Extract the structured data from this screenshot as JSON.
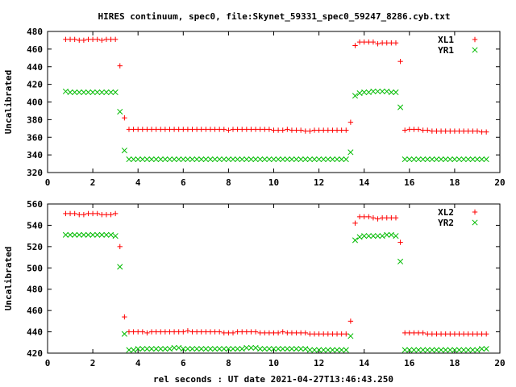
{
  "title": "HIRES continuum, spec0, file:Skynet_59331_spec0_59247_8286.cyb.txt",
  "xlabel": "rel seconds : UT date 2021-04-27T13:46:43.250",
  "colors": {
    "red": "#ff0000",
    "green": "#00bb00",
    "axis": "#000000"
  },
  "chart_data": [
    {
      "type": "scatter",
      "ylabel": "Uncalibrated",
      "xlim": [
        0,
        20
      ],
      "ylim": [
        320,
        480
      ],
      "xticks": [
        0,
        2,
        4,
        6,
        8,
        10,
        12,
        14,
        16,
        18,
        20
      ],
      "yticks": [
        320,
        340,
        360,
        380,
        400,
        420,
        440,
        460,
        480
      ],
      "legend_position": "top-right",
      "series": [
        {
          "name": "XL1",
          "marker": "plus",
          "color": "#ff0000",
          "x": [
            0.8,
            1.0,
            1.2,
            1.4,
            1.6,
            1.8,
            2.0,
            2.2,
            2.4,
            2.6,
            2.8,
            3.0,
            3.2,
            3.4,
            3.6,
            3.8,
            4.0,
            4.2,
            4.4,
            4.6,
            4.8,
            5.0,
            5.2,
            5.4,
            5.6,
            5.8,
            6.0,
            6.2,
            6.4,
            6.6,
            6.8,
            7.0,
            7.2,
            7.4,
            7.6,
            7.8,
            8.0,
            8.2,
            8.4,
            8.6,
            8.8,
            9.0,
            9.2,
            9.4,
            9.6,
            9.8,
            10.0,
            10.2,
            10.4,
            10.6,
            10.8,
            11.0,
            11.2,
            11.4,
            11.6,
            11.8,
            12.0,
            12.2,
            12.4,
            12.6,
            12.8,
            13.0,
            13.2,
            13.4,
            13.6,
            13.8,
            14.0,
            14.2,
            14.4,
            14.6,
            14.8,
            15.0,
            15.2,
            15.4,
            15.6,
            15.8,
            16.0,
            16.2,
            16.4,
            16.6,
            16.8,
            17.0,
            17.2,
            17.4,
            17.6,
            17.8,
            18.0,
            18.2,
            18.4,
            18.6,
            18.8,
            19.0,
            19.2,
            19.4
          ],
          "y": [
            471,
            471,
            471,
            470,
            470,
            471,
            471,
            471,
            470,
            471,
            471,
            471,
            441,
            382,
            369,
            369,
            369,
            369,
            369,
            369,
            369,
            369,
            369,
            369,
            369,
            369,
            369,
            369,
            369,
            369,
            369,
            369,
            369,
            369,
            369,
            369,
            368,
            369,
            369,
            369,
            369,
            369,
            369,
            369,
            369,
            369,
            368,
            368,
            368,
            369,
            368,
            368,
            368,
            367,
            367,
            368,
            368,
            368,
            368,
            368,
            368,
            368,
            368,
            377,
            464,
            468,
            468,
            468,
            468,
            466,
            467,
            467,
            467,
            467,
            446,
            368,
            369,
            369,
            369,
            368,
            368,
            367,
            367,
            367,
            367,
            367,
            367,
            367,
            367,
            367,
            367,
            367,
            366,
            366
          ],
          "x_mask_note": ""
        },
        {
          "name": "YR1",
          "marker": "cross",
          "color": "#00bb00",
          "x": [
            0.8,
            1.0,
            1.2,
            1.4,
            1.6,
            1.8,
            2.0,
            2.2,
            2.4,
            2.6,
            2.8,
            3.0,
            3.2,
            3.4,
            3.6,
            3.8,
            4.0,
            4.2,
            4.4,
            4.6,
            4.8,
            5.0,
            5.2,
            5.4,
            5.6,
            5.8,
            6.0,
            6.2,
            6.4,
            6.6,
            6.8,
            7.0,
            7.2,
            7.4,
            7.6,
            7.8,
            8.0,
            8.2,
            8.4,
            8.6,
            8.8,
            9.0,
            9.2,
            9.4,
            9.6,
            9.8,
            10.0,
            10.2,
            10.4,
            10.6,
            10.8,
            11.0,
            11.2,
            11.4,
            11.6,
            11.8,
            12.0,
            12.2,
            12.4,
            12.6,
            12.8,
            13.0,
            13.2,
            13.4,
            13.6,
            13.8,
            14.0,
            14.2,
            14.4,
            14.6,
            14.8,
            15.0,
            15.2,
            15.4,
            15.6,
            15.8,
            16.0,
            16.2,
            16.4,
            16.6,
            16.8,
            17.0,
            17.2,
            17.4,
            17.6,
            17.8,
            18.0,
            18.2,
            18.4,
            18.6,
            18.8,
            19.0,
            19.2,
            19.4
          ],
          "y": [
            412,
            411,
            411,
            411,
            411,
            411,
            411,
            411,
            411,
            411,
            411,
            411,
            389,
            345,
            335,
            335,
            335,
            335,
            335,
            335,
            335,
            335,
            335,
            335,
            335,
            335,
            335,
            335,
            335,
            335,
            335,
            335,
            335,
            335,
            335,
            335,
            335,
            335,
            335,
            335,
            335,
            335,
            335,
            335,
            335,
            335,
            335,
            335,
            335,
            335,
            335,
            335,
            335,
            335,
            335,
            335,
            335,
            335,
            335,
            335,
            335,
            335,
            335,
            343,
            407,
            410,
            411,
            411,
            412,
            412,
            412,
            412,
            411,
            411,
            394,
            335,
            335,
            335,
            335,
            335,
            335,
            335,
            335,
            335,
            335,
            335,
            335,
            335,
            335,
            335,
            335,
            335,
            335,
            335
          ]
        }
      ]
    },
    {
      "type": "scatter",
      "ylabel": "Uncalibrated",
      "xlim": [
        0,
        20
      ],
      "ylim": [
        420,
        560
      ],
      "xticks": [
        0,
        2,
        4,
        6,
        8,
        10,
        12,
        14,
        16,
        18,
        20
      ],
      "yticks": [
        420,
        440,
        460,
        480,
        500,
        520,
        540,
        560
      ],
      "legend_position": "top-right",
      "series": [
        {
          "name": "XL2",
          "marker": "plus",
          "color": "#ff0000",
          "x": [
            0.8,
            1.0,
            1.2,
            1.4,
            1.6,
            1.8,
            2.0,
            2.2,
            2.4,
            2.6,
            2.8,
            3.0,
            3.2,
            3.4,
            3.6,
            3.8,
            4.0,
            4.2,
            4.4,
            4.6,
            4.8,
            5.0,
            5.2,
            5.4,
            5.6,
            5.8,
            6.0,
            6.2,
            6.4,
            6.6,
            6.8,
            7.0,
            7.2,
            7.4,
            7.6,
            7.8,
            8.0,
            8.2,
            8.4,
            8.6,
            8.8,
            9.0,
            9.2,
            9.4,
            9.6,
            9.8,
            10.0,
            10.2,
            10.4,
            10.6,
            10.8,
            11.0,
            11.2,
            11.4,
            11.6,
            11.8,
            12.0,
            12.2,
            12.4,
            12.6,
            12.8,
            13.0,
            13.2,
            13.4,
            13.6,
            13.8,
            14.0,
            14.2,
            14.4,
            14.6,
            14.8,
            15.0,
            15.2,
            15.4,
            15.6,
            15.8,
            16.0,
            16.2,
            16.4,
            16.6,
            16.8,
            17.0,
            17.2,
            17.4,
            17.6,
            17.8,
            18.0,
            18.2,
            18.4,
            18.6,
            18.8,
            19.0,
            19.2,
            19.4
          ],
          "y": [
            551,
            551,
            551,
            550,
            550,
            551,
            551,
            551,
            550,
            550,
            550,
            551,
            520,
            454,
            440,
            440,
            440,
            440,
            439,
            440,
            440,
            440,
            440,
            440,
            440,
            440,
            440,
            441,
            440,
            440,
            440,
            440,
            440,
            440,
            440,
            439,
            439,
            439,
            440,
            440,
            440,
            440,
            440,
            439,
            439,
            439,
            439,
            439,
            440,
            439,
            439,
            439,
            439,
            439,
            438,
            438,
            438,
            438,
            438,
            438,
            438,
            438,
            438,
            450,
            542,
            548,
            548,
            548,
            547,
            546,
            547,
            547,
            547,
            547,
            524,
            439,
            439,
            439,
            439,
            439,
            438,
            438,
            438,
            438,
            438,
            438,
            438,
            438,
            438,
            438,
            438,
            438,
            438,
            438
          ]
        },
        {
          "name": "YR2",
          "marker": "cross",
          "color": "#00bb00",
          "x": [
            0.8,
            1.0,
            1.2,
            1.4,
            1.6,
            1.8,
            2.0,
            2.2,
            2.4,
            2.6,
            2.8,
            3.0,
            3.2,
            3.4,
            3.6,
            3.8,
            4.0,
            4.2,
            4.4,
            4.6,
            4.8,
            5.0,
            5.2,
            5.4,
            5.6,
            5.8,
            6.0,
            6.2,
            6.4,
            6.6,
            6.8,
            7.0,
            7.2,
            7.4,
            7.6,
            7.8,
            8.0,
            8.2,
            8.4,
            8.6,
            8.8,
            9.0,
            9.2,
            9.4,
            9.6,
            9.8,
            10.0,
            10.2,
            10.4,
            10.6,
            10.8,
            11.0,
            11.2,
            11.4,
            11.6,
            11.8,
            12.0,
            12.2,
            12.4,
            12.6,
            12.8,
            13.0,
            13.2,
            13.4,
            13.6,
            13.8,
            14.0,
            14.2,
            14.4,
            14.6,
            14.8,
            15.0,
            15.2,
            15.4,
            15.6,
            15.8,
            16.0,
            16.2,
            16.4,
            16.6,
            16.8,
            17.0,
            17.2,
            17.4,
            17.6,
            17.8,
            18.0,
            18.2,
            18.4,
            18.6,
            18.8,
            19.0,
            19.2,
            19.4
          ],
          "y": [
            531,
            531,
            531,
            531,
            531,
            531,
            531,
            531,
            531,
            531,
            531,
            530,
            501,
            438,
            423,
            423,
            424,
            424,
            424,
            424,
            424,
            424,
            424,
            424,
            425,
            425,
            424,
            424,
            424,
            424,
            424,
            424,
            424,
            424,
            424,
            424,
            424,
            424,
            424,
            424,
            425,
            425,
            425,
            424,
            424,
            424,
            424,
            424,
            424,
            424,
            424,
            424,
            424,
            424,
            423,
            423,
            423,
            423,
            423,
            423,
            423,
            423,
            423,
            436,
            526,
            529,
            530,
            530,
            530,
            530,
            530,
            531,
            531,
            530,
            506,
            423,
            423,
            423,
            423,
            423,
            423,
            423,
            423,
            423,
            423,
            423,
            423,
            423,
            423,
            423,
            423,
            423,
            424,
            424
          ]
        }
      ]
    }
  ]
}
